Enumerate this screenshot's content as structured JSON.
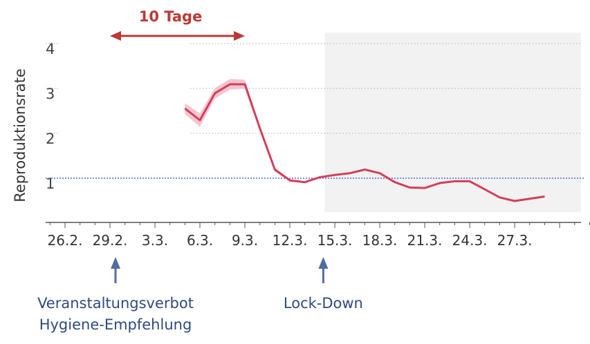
{
  "chart_data": {
    "type": "line",
    "ylabel": "Reproduktionsrate",
    "xlabel": "",
    "ylim": [
      0.35,
      4.3
    ],
    "yticks": [
      1,
      2,
      3,
      4
    ],
    "categories": [
      "26.2.",
      "29.2.",
      "3.3.",
      "6.3.",
      "9.3.",
      "12.3.",
      "15.3.",
      "18.3.",
      "21.3.",
      "24.3.",
      "27.3."
    ],
    "x": [
      "5.3.",
      "6.3.",
      "7.3.",
      "8.3.",
      "9.3.",
      "10.3.",
      "11.3.",
      "12.3.",
      "13.3.",
      "14.3.",
      "15.3.",
      "16.3.",
      "17.3.",
      "18.3.",
      "19.3.",
      "20.3.",
      "21.3.",
      "22.3.",
      "23.3.",
      "24.3.",
      "25.3.",
      "26.3.",
      "27.3.",
      "28.3.",
      "29.3."
    ],
    "series": [
      {
        "values": [
          2.66,
          2.4,
          3.0,
          3.2,
          3.2,
          2.22,
          1.3,
          1.06,
          1.02,
          1.13,
          1.18,
          1.22,
          1.3,
          1.22,
          1.02,
          0.9,
          0.89,
          1.0,
          1.04,
          1.04,
          0.86,
          0.68,
          0.6,
          0.65,
          0.7
        ],
        "band": [
          0.12,
          0.15,
          0.12,
          0.12,
          0.1,
          0.06,
          0.04,
          0.03,
          0.02,
          0.02,
          0.02,
          0.02,
          0.02,
          0.02,
          0.02,
          0.02,
          0.02,
          0.02,
          0.02,
          0.02,
          0.02,
          0.02,
          0.02,
          0.02,
          0.02
        ]
      }
    ],
    "reference_line": 1.0,
    "shaded_from": "14.3.",
    "grid": true,
    "annotations": {
      "span_label": "10 Tage",
      "span_from": "29.2.",
      "span_to": "9.3.",
      "arrows": [
        {
          "at": "29.2.",
          "lines": [
            "Veranstaltungsverbot",
            "Hygiene-Empfehlung"
          ]
        },
        {
          "at": "14.3.",
          "lines": [
            "Lock-Down"
          ]
        }
      ]
    },
    "colors": {
      "line": "#d43d5a",
      "band": "#f4c6d0",
      "reference": "#4a6ad0",
      "shade": "#f2f2f2",
      "span_arrow": "#b93a36",
      "event_arrow": "#4f6e9e",
      "annotation_text": "#2d4a80",
      "axis": "#555555",
      "grid": "#aaaaaa"
    }
  }
}
